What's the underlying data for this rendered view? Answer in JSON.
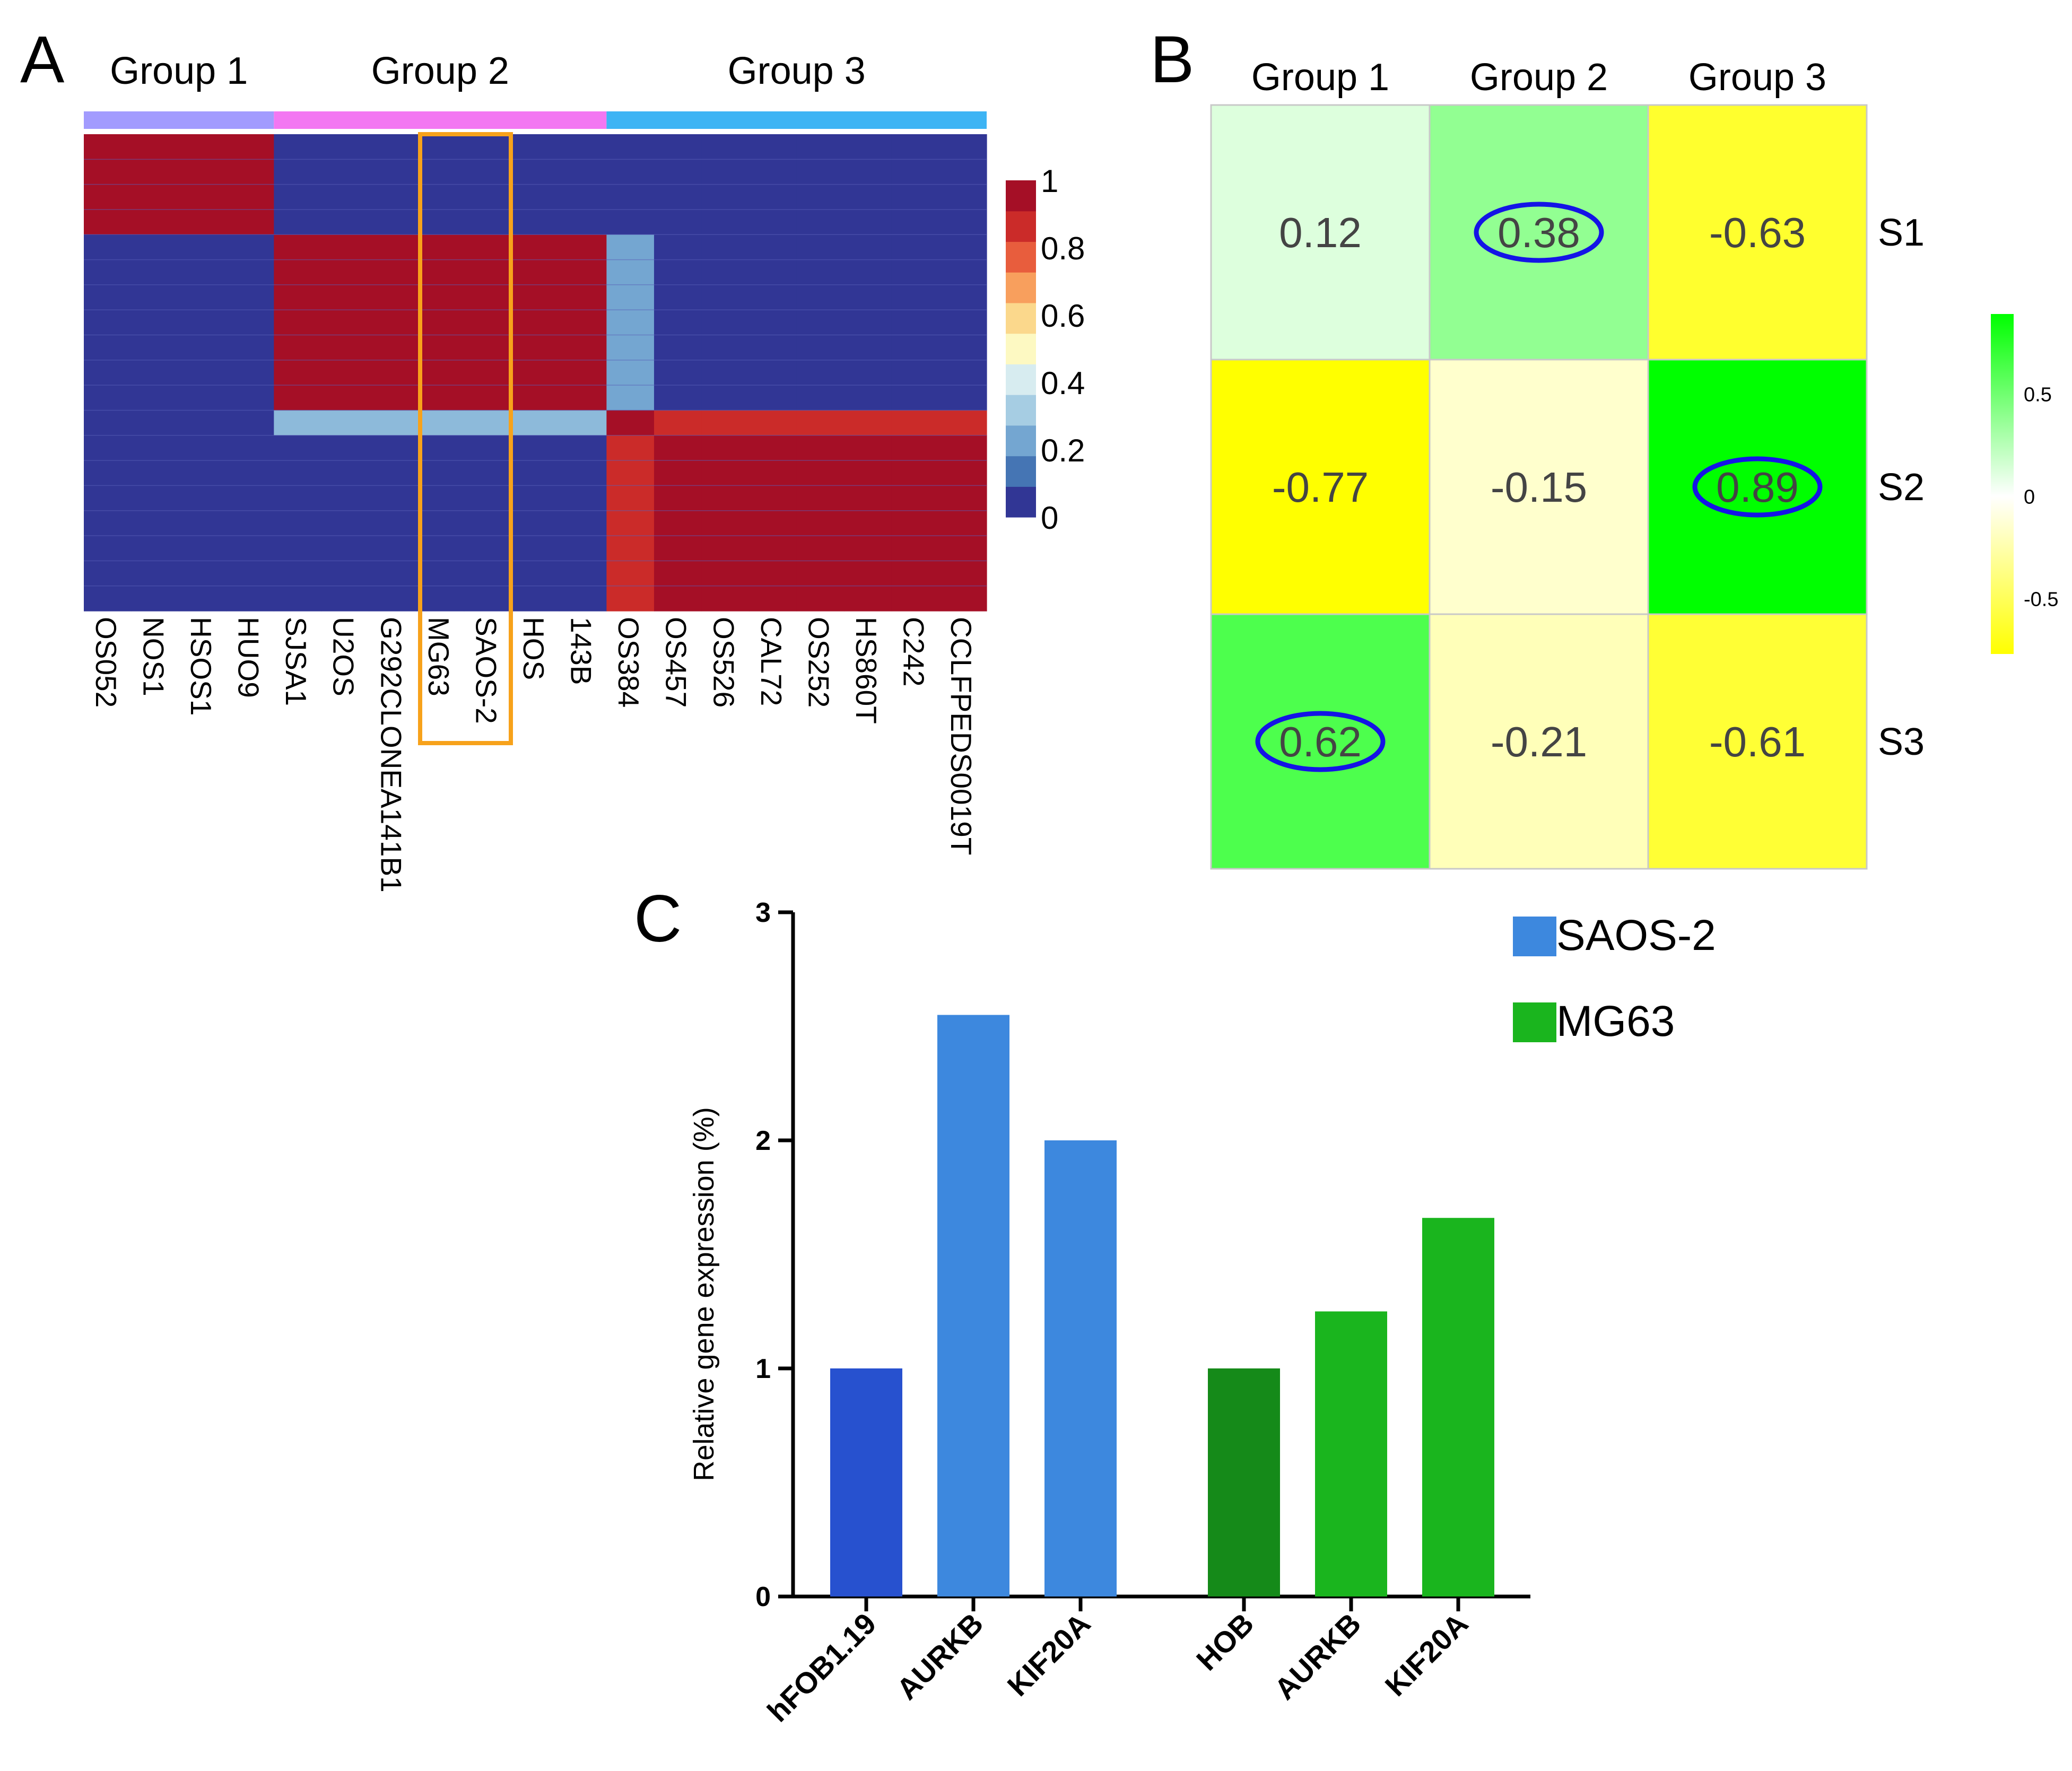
{
  "chart_data": [
    {
      "type": "heatmap",
      "panel_label": "A",
      "group_labels": [
        "Group 1",
        "Group 2",
        "Group 3"
      ],
      "group_colors": [
        "#a29bfe",
        "#f377f2",
        "#3db4f4"
      ],
      "group_spans": [
        4,
        7,
        8
      ],
      "columns": [
        "OS052",
        "NOS1",
        "HSOS1",
        "HUO9",
        "SJSA1",
        "U2OS",
        "G292CLONEA141B1",
        "MG63",
        "SAOS-2",
        "HOS",
        "143B",
        "OS384",
        "OS457",
        "OS526",
        "CAL72",
        "OS252",
        "HS860T",
        "C242",
        "CCLFPEDS0019T"
      ],
      "row_count": 19,
      "highlighted_columns": [
        "MG63",
        "SAOS-2"
      ],
      "highlight_color": "#f7a21b",
      "values": [
        [
          1,
          1,
          1,
          1,
          0,
          0,
          0,
          0,
          0,
          0,
          0,
          0,
          0,
          0,
          0,
          0,
          0,
          0,
          0
        ],
        [
          1,
          1,
          1,
          1,
          0,
          0,
          0,
          0,
          0,
          0,
          0,
          0,
          0,
          0,
          0,
          0,
          0,
          0,
          0
        ],
        [
          1,
          1,
          1,
          1,
          0,
          0,
          0,
          0,
          0,
          0,
          0,
          0,
          0,
          0,
          0,
          0,
          0,
          0,
          0
        ],
        [
          1,
          1,
          1,
          1,
          0,
          0,
          0,
          0,
          0,
          0,
          0,
          0,
          0,
          0,
          0,
          0,
          0,
          0,
          0
        ],
        [
          0,
          0,
          0,
          0,
          1,
          1,
          1,
          1,
          1,
          1,
          1,
          0.2,
          0,
          0,
          0,
          0,
          0,
          0,
          0
        ],
        [
          0,
          0,
          0,
          0,
          1,
          1,
          1,
          1,
          1,
          1,
          1,
          0.2,
          0,
          0,
          0,
          0,
          0,
          0,
          0
        ],
        [
          0,
          0,
          0,
          0,
          1,
          1,
          1,
          1,
          1,
          1,
          1,
          0.2,
          0,
          0,
          0,
          0,
          0,
          0,
          0
        ],
        [
          0,
          0,
          0,
          0,
          1,
          1,
          1,
          1,
          1,
          1,
          1,
          0.2,
          0,
          0,
          0,
          0,
          0,
          0,
          0
        ],
        [
          0,
          0,
          0,
          0,
          1,
          1,
          1,
          1,
          1,
          1,
          1,
          0.2,
          0,
          0,
          0,
          0,
          0,
          0,
          0
        ],
        [
          0,
          0,
          0,
          0,
          1,
          1,
          1,
          1,
          1,
          1,
          1,
          0.2,
          0,
          0,
          0,
          0,
          0,
          0,
          0
        ],
        [
          0,
          0,
          0,
          0,
          1,
          1,
          1,
          1,
          1,
          1,
          1,
          0.2,
          0,
          0,
          0,
          0,
          0,
          0,
          0
        ],
        [
          0,
          0,
          0,
          0,
          0.25,
          0.25,
          0.25,
          0.25,
          0.25,
          0.25,
          0.25,
          1,
          0.9,
          0.9,
          0.9,
          0.9,
          0.9,
          0.9,
          0.9
        ],
        [
          0,
          0,
          0,
          0,
          0,
          0,
          0,
          0,
          0,
          0,
          0,
          0.9,
          1,
          1,
          1,
          1,
          1,
          1,
          1
        ],
        [
          0,
          0,
          0,
          0,
          0,
          0,
          0,
          0,
          0,
          0,
          0,
          0.9,
          1,
          1,
          1,
          1,
          1,
          1,
          1
        ],
        [
          0,
          0,
          0,
          0,
          0,
          0,
          0,
          0,
          0,
          0,
          0,
          0.9,
          1,
          1,
          1,
          1,
          1,
          1,
          1
        ],
        [
          0,
          0,
          0,
          0,
          0,
          0,
          0,
          0,
          0,
          0,
          0,
          0.9,
          1,
          1,
          1,
          1,
          1,
          1,
          1
        ],
        [
          0,
          0,
          0,
          0,
          0,
          0,
          0,
          0,
          0,
          0,
          0,
          0.9,
          1,
          1,
          1,
          1,
          1,
          1,
          1
        ],
        [
          0,
          0,
          0,
          0,
          0,
          0,
          0,
          0,
          0,
          0,
          0,
          0.9,
          1,
          1,
          1,
          1,
          1,
          1,
          1
        ],
        [
          0,
          0,
          0,
          0,
          0,
          0,
          0,
          0,
          0,
          0,
          0,
          0.9,
          1,
          1,
          1,
          1,
          1,
          1,
          1
        ]
      ],
      "colorbar": {
        "ticks": [
          "1",
          "0.8",
          "0.6",
          "0.4",
          "0.2",
          "0"
        ],
        "colors": [
          "#313695",
          "#4575b4",
          "#74a6d1",
          "#a6cde3",
          "#d7ecf0",
          "#fdf9c2",
          "#fbd88c",
          "#f89f5d",
          "#e85d3d",
          "#cb2b29",
          "#a50f26"
        ],
        "range": [
          0,
          1
        ]
      }
    },
    {
      "type": "heatmap",
      "panel_label": "B",
      "columns": [
        "Group 1",
        "Group 2",
        "Group 3"
      ],
      "rows": [
        "S1",
        "S2",
        "S3"
      ],
      "values": [
        [
          0.12,
          0.38,
          -0.63
        ],
        [
          -0.77,
          -0.15,
          0.89
        ],
        [
          0.62,
          -0.21,
          -0.61
        ]
      ],
      "value_labels": [
        [
          "0.12",
          "0.38",
          "-0.63"
        ],
        [
          "-0.77",
          "-0.15",
          "0.89"
        ],
        [
          "0.62",
          "-0.21",
          "-0.61"
        ]
      ],
      "circled_cells": [
        [
          0,
          1
        ],
        [
          1,
          2
        ],
        [
          2,
          0
        ]
      ],
      "circle_color": "#1414e6",
      "colorbar": {
        "ticks": [
          "0.5",
          "0",
          "-0.5"
        ],
        "tick_values": [
          0.5,
          0,
          -0.5
        ],
        "range": [
          -0.77,
          0.89
        ],
        "high_color": "#00ff00",
        "mid_color": "#ffffff",
        "low_color": "#ffff00"
      }
    },
    {
      "type": "bar",
      "panel_label": "C",
      "ylabel": "Relative gene expression (%)",
      "ylim": [
        0,
        3
      ],
      "yticks": [
        "0",
        "1",
        "2",
        "3"
      ],
      "categories": [
        "hFOB1.19",
        "AURKB",
        "KIF20A",
        "HOB",
        "AURKB",
        "KIF20A"
      ],
      "values": [
        1.0,
        2.55,
        2.0,
        1.0,
        1.25,
        1.66
      ],
      "bar_colors": [
        "#2751cf",
        "#3d88de",
        "#3d88de",
        "#158a19",
        "#1ab51e",
        "#1ab51e"
      ],
      "legend": [
        {
          "label": "SAOS-2",
          "color": "#3d88de"
        },
        {
          "label": "MG63",
          "color": "#1ab51e"
        }
      ],
      "legend_position": "top-right"
    }
  ]
}
